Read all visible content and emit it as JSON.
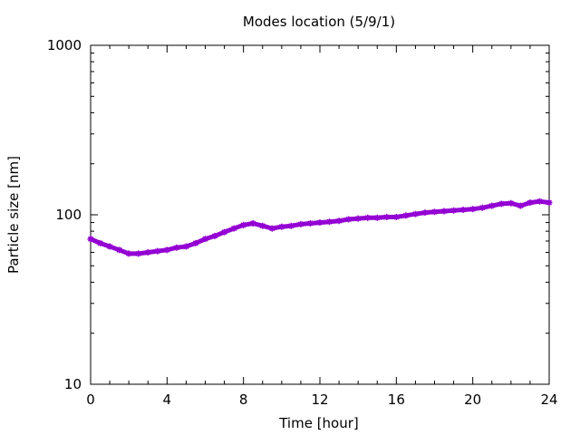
{
  "chart_data": {
    "type": "line",
    "title": "Modes location (5/9/1)",
    "xlabel": "Time [hour]",
    "ylabel": "Particle size [nm]",
    "xlim": [
      0,
      24
    ],
    "ylim": [
      10,
      1000
    ],
    "yscale": "log",
    "x_ticks": [
      "0",
      "4",
      "8",
      "12",
      "16",
      "20",
      "24"
    ],
    "y_ticks": [
      "10",
      "100",
      "1000"
    ],
    "grid": false,
    "series": [
      {
        "color": "#9400d3",
        "marker": "star",
        "x": [
          0,
          0.5,
          1,
          1.5,
          2,
          2.5,
          3,
          3.5,
          4,
          4.5,
          5,
          5.5,
          6,
          6.5,
          7,
          7.5,
          8,
          8.5,
          9,
          9.5,
          10,
          10.5,
          11,
          11.5,
          12,
          12.5,
          13,
          13.5,
          14,
          14.5,
          15,
          15.5,
          16,
          16.5,
          17,
          17.5,
          18,
          18.5,
          19,
          19.5,
          20,
          20.5,
          21,
          21.5,
          22,
          22.5,
          23,
          23.5,
          24
        ],
        "y": [
          72,
          68,
          65,
          62,
          59,
          59,
          60,
          61,
          62,
          64,
          65,
          68,
          72,
          75,
          79,
          83,
          87,
          89,
          86,
          83,
          85,
          86,
          88,
          89,
          90,
          91,
          92,
          94,
          95,
          96,
          96,
          97,
          97,
          99,
          101,
          103,
          104,
          105,
          106,
          107,
          108,
          110,
          113,
          116,
          117,
          113,
          118,
          120,
          118
        ]
      }
    ]
  }
}
